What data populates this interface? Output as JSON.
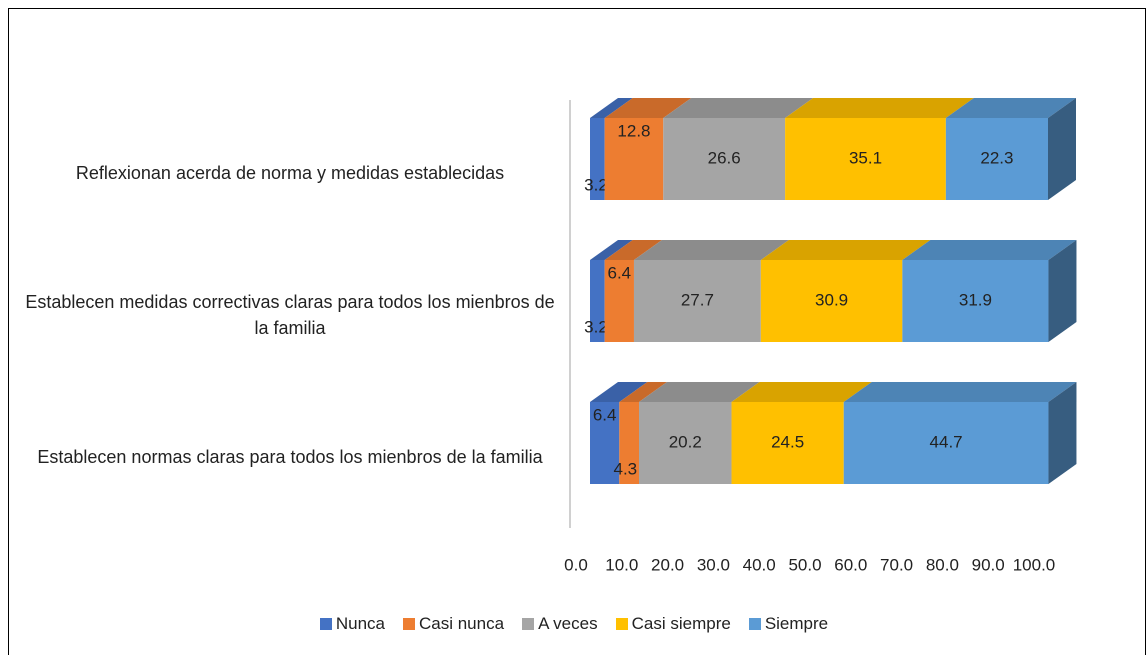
{
  "chart_data": {
    "type": "bar3d_stacked_horizontal",
    "categories": [
      "Reflexionan acerda de norma y medidas establecidas",
      "Establecen medidas correctivas claras para todos los mienbros de la familia",
      "Establecen normas claras para todos los mienbros de la familia"
    ],
    "series": [
      {
        "name": "Nunca",
        "color": "#4472c4",
        "values": [
          3.2,
          3.2,
          6.4
        ]
      },
      {
        "name": "Casi nunca",
        "color": "#ed7d31",
        "values": [
          12.8,
          6.4,
          4.3
        ]
      },
      {
        "name": "A veces",
        "color": "#a5a5a5",
        "values": [
          26.6,
          27.7,
          20.2
        ]
      },
      {
        "name": "Casi siempre",
        "color": "#ffc000",
        "values": [
          35.1,
          30.9,
          24.5
        ]
      },
      {
        "name": "Siempre",
        "color": "#5b9bd5",
        "values": [
          22.3,
          31.9,
          44.7
        ]
      }
    ],
    "xlim": [
      0,
      100
    ],
    "xticks": [
      {
        "value": 0,
        "label": "0.0"
      },
      {
        "value": 10,
        "label": "10.0"
      },
      {
        "value": 20,
        "label": "20.0"
      },
      {
        "value": 30,
        "label": "30.0"
      },
      {
        "value": 40,
        "label": "40.0"
      },
      {
        "value": 50,
        "label": "50.0"
      },
      {
        "value": 60,
        "label": "60.0"
      },
      {
        "value": 70,
        "label": "70.0"
      },
      {
        "value": 80,
        "label": "80.0"
      },
      {
        "value": 90,
        "label": "90.0"
      },
      {
        "value": 100,
        "label": "100.0"
      }
    ],
    "legend": "bottom"
  }
}
